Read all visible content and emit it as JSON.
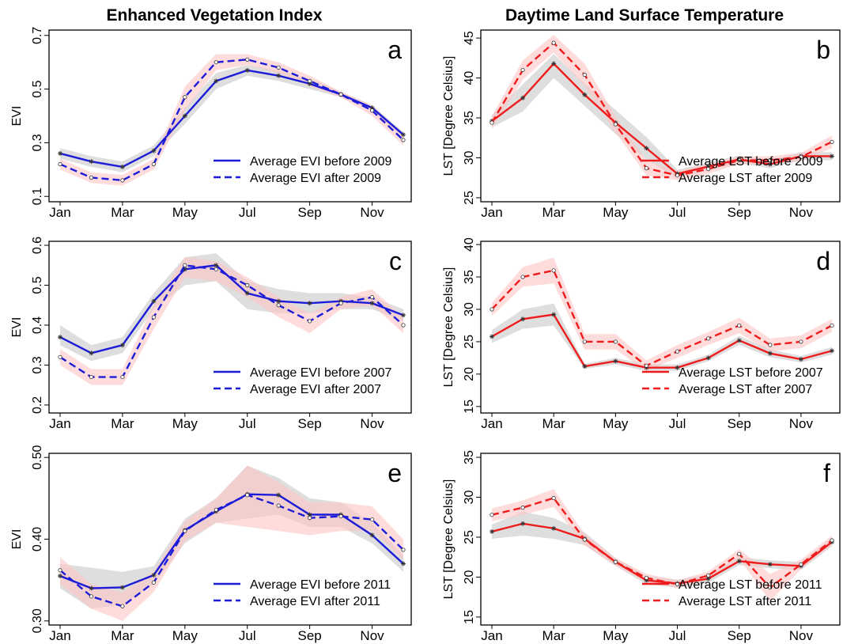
{
  "chart_data": [
    {
      "type": "line",
      "title": "Enhanced Vegetation Index",
      "panel_label": "a",
      "y_label": "EVI",
      "categories": [
        "Jan",
        null,
        "Mar",
        null,
        "May",
        null,
        "Jul",
        null,
        "Sep",
        null,
        "Nov",
        null
      ],
      "ylim": [
        0.08,
        0.72
      ],
      "yticks": [
        0.1,
        0.3,
        0.5,
        0.7
      ],
      "legend": "lower right",
      "series": [
        {
          "name": "Average EVI before 2009",
          "color": "#1c1cd8",
          "dash": "solid",
          "marker": "star",
          "band_color": "#c8c8c8",
          "values": [
            0.26,
            0.23,
            0.21,
            0.27,
            0.4,
            0.53,
            0.57,
            0.55,
            0.52,
            0.48,
            0.43,
            0.33
          ],
          "lower": [
            0.24,
            0.21,
            0.19,
            0.25,
            0.37,
            0.5,
            0.55,
            0.53,
            0.5,
            0.47,
            0.42,
            0.32
          ],
          "upper": [
            0.28,
            0.25,
            0.23,
            0.29,
            0.43,
            0.56,
            0.59,
            0.57,
            0.54,
            0.49,
            0.44,
            0.34
          ]
        },
        {
          "name": "Average EVI after 2009",
          "color": "#1c1cd8",
          "dash": "dashed",
          "marker": "circle",
          "band_color": "#ffc4c4",
          "values": [
            0.22,
            0.17,
            0.16,
            0.22,
            0.47,
            0.6,
            0.61,
            0.58,
            0.53,
            0.48,
            0.42,
            0.31
          ],
          "lower": [
            0.2,
            0.15,
            0.14,
            0.2,
            0.42,
            0.57,
            0.59,
            0.56,
            0.51,
            0.47,
            0.4,
            0.29
          ],
          "upper": [
            0.24,
            0.19,
            0.18,
            0.24,
            0.51,
            0.63,
            0.63,
            0.6,
            0.55,
            0.49,
            0.44,
            0.33
          ]
        }
      ]
    },
    {
      "type": "line",
      "title": "Daytime Land Surface Temperature",
      "panel_label": "b",
      "y_label": "LST [Degree Celsius]",
      "categories": [
        "Jan",
        null,
        "Mar",
        null,
        "May",
        null,
        "Jul",
        null,
        "Sep",
        null,
        "Nov",
        null
      ],
      "ylim": [
        24.5,
        46
      ],
      "yticks": [
        25,
        30,
        35,
        40,
        45
      ],
      "legend": "lower right",
      "series": [
        {
          "name": "Average LST before 2009",
          "color": "#ee1c1c",
          "dash": "solid",
          "marker": "star",
          "band_color": "#c8c8c8",
          "values": [
            34.6,
            37.5,
            41.8,
            37.9,
            34.4,
            31.2,
            28.0,
            28.9,
            29.8,
            29.2,
            30.2,
            30.2
          ],
          "lower": [
            33.8,
            35.8,
            40.0,
            36.5,
            33.0,
            29.8,
            27.5,
            28.4,
            29.3,
            28.7,
            29.7,
            29.7
          ],
          "upper": [
            35.4,
            39.2,
            43.0,
            39.3,
            36.0,
            32.6,
            28.5,
            29.4,
            30.3,
            29.7,
            30.7,
            30.7
          ]
        },
        {
          "name": "Average LST after 2009",
          "color": "#ee1c1c",
          "dash": "dashed",
          "marker": "circle",
          "band_color": "#ffc4c4",
          "values": [
            34.4,
            41.0,
            44.4,
            40.4,
            34.2,
            28.7,
            27.8,
            28.6,
            29.7,
            29.7,
            30.1,
            32.0
          ],
          "lower": [
            33.6,
            39.8,
            43.2,
            39.0,
            33.2,
            27.8,
            27.2,
            28.0,
            29.2,
            29.2,
            29.6,
            31.2
          ],
          "upper": [
            35.2,
            42.2,
            45.4,
            41.8,
            35.2,
            29.6,
            28.4,
            29.2,
            30.2,
            30.2,
            30.6,
            32.8
          ]
        }
      ]
    },
    {
      "type": "line",
      "panel_label": "c",
      "y_label": "EVI",
      "categories": [
        "Jan",
        null,
        "Mar",
        null,
        "May",
        null,
        "Jul",
        null,
        "Sep",
        null,
        "Nov",
        null
      ],
      "ylim": [
        0.18,
        0.61
      ],
      "yticks": [
        0.2,
        0.3,
        0.4,
        0.5,
        0.6
      ],
      "legend": "lower right",
      "series": [
        {
          "name": "Average EVI before 2007",
          "color": "#1c1cd8",
          "dash": "solid",
          "marker": "star",
          "band_color": "#c8c8c8",
          "values": [
            0.37,
            0.33,
            0.35,
            0.46,
            0.54,
            0.55,
            0.48,
            0.46,
            0.455,
            0.46,
            0.455,
            0.425
          ],
          "lower": [
            0.35,
            0.31,
            0.33,
            0.44,
            0.5,
            0.51,
            0.44,
            0.43,
            0.43,
            0.44,
            0.44,
            0.41
          ],
          "upper": [
            0.4,
            0.35,
            0.37,
            0.48,
            0.57,
            0.58,
            0.51,
            0.49,
            0.48,
            0.48,
            0.47,
            0.44
          ]
        },
        {
          "name": "Average EVI after 2007",
          "color": "#1c1cd8",
          "dash": "dashed",
          "marker": "circle",
          "band_color": "#ffc4c4",
          "values": [
            0.32,
            0.27,
            0.27,
            0.42,
            0.55,
            0.54,
            0.5,
            0.45,
            0.41,
            0.455,
            0.47,
            0.4
          ],
          "lower": [
            0.3,
            0.25,
            0.25,
            0.39,
            0.52,
            0.51,
            0.47,
            0.42,
            0.38,
            0.44,
            0.45,
            0.38
          ],
          "upper": [
            0.34,
            0.29,
            0.29,
            0.45,
            0.57,
            0.56,
            0.52,
            0.47,
            0.43,
            0.47,
            0.49,
            0.42
          ]
        }
      ]
    },
    {
      "type": "line",
      "panel_label": "d",
      "y_label": "LST [Degree Celsius]",
      "categories": [
        "Jan",
        null,
        "Mar",
        null,
        "May",
        null,
        "Jul",
        null,
        "Sep",
        null,
        "Nov",
        null
      ],
      "ylim": [
        14,
        40.5
      ],
      "yticks": [
        15,
        20,
        25,
        30,
        35,
        40
      ],
      "legend": "lower right",
      "series": [
        {
          "name": "Average LST before 2007",
          "color": "#ee1c1c",
          "dash": "solid",
          "marker": "star",
          "band_color": "#c8c8c8",
          "values": [
            25.8,
            28.5,
            29.2,
            21.2,
            22.0,
            21.0,
            21.0,
            22.5,
            25.2,
            23.2,
            22.3,
            23.6
          ],
          "lower": [
            24.8,
            27.0,
            27.5,
            20.8,
            21.5,
            20.5,
            20.5,
            22.0,
            24.5,
            22.6,
            21.8,
            23.0
          ],
          "upper": [
            26.8,
            30.0,
            30.9,
            21.6,
            22.5,
            21.5,
            21.5,
            23.0,
            25.9,
            23.8,
            22.8,
            24.2
          ]
        },
        {
          "name": "Average LST after 2007",
          "color": "#ee1c1c",
          "dash": "dashed",
          "marker": "circle",
          "band_color": "#ffc4c4",
          "values": [
            30.0,
            35.0,
            36.0,
            25.0,
            25.0,
            21.3,
            23.5,
            25.5,
            27.5,
            24.5,
            25.0,
            27.5
          ],
          "lower": [
            29.0,
            33.5,
            34.0,
            23.8,
            23.8,
            20.5,
            22.5,
            24.5,
            26.3,
            23.5,
            24.0,
            26.5
          ],
          "upper": [
            31.0,
            36.5,
            38.0,
            26.2,
            26.2,
            22.1,
            24.5,
            26.5,
            28.7,
            25.5,
            26.0,
            28.5
          ]
        }
      ]
    },
    {
      "type": "line",
      "panel_label": "e",
      "y_label": "EVI",
      "categories": [
        "Jan",
        null,
        "Mar",
        null,
        "May",
        null,
        "Jul",
        null,
        "Sep",
        null,
        "Nov",
        null
      ],
      "ylim": [
        0.295,
        0.505
      ],
      "yticks": [
        {
          "value": 0.3,
          "label": "0.30"
        },
        {
          "value": 0.4,
          "label": "0.40"
        },
        {
          "value": 0.5,
          "label": "0.50"
        }
      ],
      "legend": "lower right",
      "series": [
        {
          "name": "Average EVI before 2011",
          "color": "#1c1cd8",
          "dash": "solid",
          "marker": "star",
          "band_color": "#c8c8c8",
          "values": [
            0.355,
            0.34,
            0.341,
            0.356,
            0.411,
            0.434,
            0.455,
            0.454,
            0.43,
            0.43,
            0.405,
            0.37
          ],
          "lower": [
            0.34,
            0.315,
            0.32,
            0.345,
            0.395,
            0.42,
            0.425,
            0.43,
            0.415,
            0.415,
            0.395,
            0.36
          ],
          "upper": [
            0.37,
            0.365,
            0.36,
            0.367,
            0.425,
            0.45,
            0.49,
            0.475,
            0.45,
            0.445,
            0.42,
            0.38
          ]
        },
        {
          "name": "Average EVI after 2011",
          "color": "#1c1cd8",
          "dash": "dashed",
          "marker": "circle",
          "band_color": "#ffc4c4",
          "values": [
            0.362,
            0.33,
            0.318,
            0.347,
            0.41,
            0.436,
            0.454,
            0.441,
            0.426,
            0.428,
            0.424,
            0.387
          ],
          "lower": [
            0.345,
            0.315,
            0.3,
            0.335,
            0.398,
            0.42,
            0.415,
            0.41,
            0.405,
            0.41,
            0.41,
            0.375
          ],
          "upper": [
            0.378,
            0.345,
            0.335,
            0.36,
            0.422,
            0.45,
            0.49,
            0.47,
            0.445,
            0.445,
            0.44,
            0.4
          ]
        }
      ]
    },
    {
      "type": "line",
      "panel_label": "f",
      "y_label": "LST [Degree Celsius]",
      "categories": [
        "Jan",
        null,
        "Mar",
        null,
        "May",
        null,
        "Jul",
        null,
        "Sep",
        null,
        "Nov",
        null
      ],
      "ylim": [
        14,
        35.5
      ],
      "yticks": [
        15,
        20,
        25,
        30,
        35
      ],
      "legend": "lower right",
      "series": [
        {
          "name": "Average LST before 2011",
          "color": "#ee1c1c",
          "dash": "solid",
          "marker": "star",
          "band_color": "#c8c8c8",
          "values": [
            25.7,
            26.7,
            26.1,
            24.8,
            21.9,
            19.6,
            19.2,
            19.8,
            22.0,
            21.6,
            21.4,
            24.4
          ],
          "lower": [
            24.8,
            25.2,
            24.8,
            24.0,
            21.4,
            19.1,
            18.7,
            19.3,
            21.5,
            21.1,
            20.9,
            23.9
          ],
          "upper": [
            26.6,
            28.2,
            27.4,
            25.6,
            22.4,
            20.1,
            19.7,
            20.3,
            22.5,
            22.1,
            21.9,
            24.9
          ]
        },
        {
          "name": "Average LST after 2011",
          "color": "#ee1c1c",
          "dash": "dashed",
          "marker": "circle",
          "band_color": "#ffc4c4",
          "values": [
            27.8,
            28.7,
            29.9,
            24.7,
            21.9,
            19.9,
            19.1,
            20.2,
            22.9,
            18.7,
            21.6,
            24.6
          ],
          "lower": [
            27.0,
            27.8,
            28.8,
            24.0,
            21.4,
            19.4,
            18.6,
            19.7,
            22.3,
            17.0,
            21.0,
            24.0
          ],
          "upper": [
            28.6,
            29.6,
            31.0,
            25.4,
            22.4,
            20.4,
            19.6,
            20.7,
            23.5,
            20.4,
            22.2,
            25.2
          ]
        }
      ]
    }
  ]
}
